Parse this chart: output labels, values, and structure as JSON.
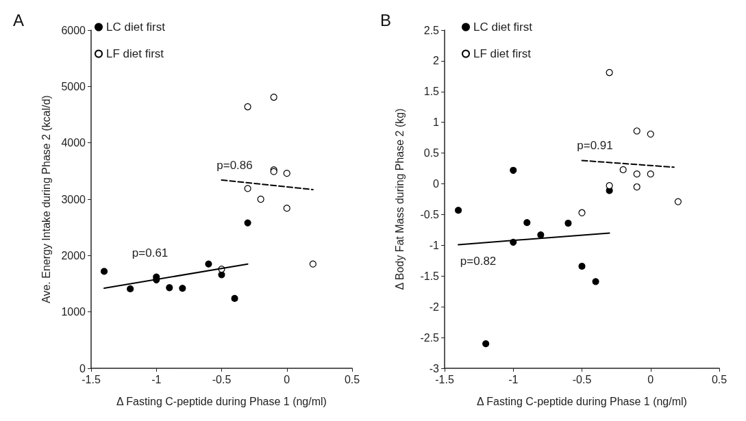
{
  "chart_data": [
    {
      "type": "scatter",
      "title": "A",
      "xlabel": "Δ Fasting C-peptide during Phase 1 (ng/ml)",
      "ylabel": "Ave. Energy Intake during Phase 2 (kcal/d)",
      "xlim": [
        -1.5,
        0.5
      ],
      "xticks": [
        -1.5,
        -1,
        -0.5,
        0,
        0.5
      ],
      "ylim": [
        0,
        6000
      ],
      "yticks": [
        0,
        1000,
        2000,
        3000,
        4000,
        5000,
        6000
      ],
      "grid": false,
      "legend": "top left",
      "marker": "circle",
      "series": [
        {
          "name": "LC diet first",
          "color": "#000000",
          "x": [
            -1.4,
            -1.2,
            -1,
            -1,
            -0.9,
            -0.8,
            -0.6,
            -0.5,
            -0.4,
            -0.3
          ],
          "values": [
            1720,
            1410,
            1620,
            1570,
            1430,
            1420,
            1850,
            1660,
            1240,
            2580
          ]
        },
        {
          "name": "LF diet first",
          "color": "#ffffff",
          "x": [
            -0.3,
            -0.1,
            -0.1,
            -0.1,
            0,
            -0.3,
            -0.2,
            0,
            0.2,
            -0.5
          ],
          "values": [
            4640,
            4810,
            3520,
            3490,
            3460,
            3190,
            3000,
            2840,
            1850,
            1760
          ]
        },
        {
          "type": "line",
          "color": "#000000",
          "line_style": "solid",
          "marker": "none",
          "x": [
            -1.4,
            -0.3
          ],
          "values": [
            1420,
            1850
          ]
        },
        {
          "type": "line",
          "color": "#000000",
          "line_style": "dashed",
          "marker": "none",
          "x": [
            -0.5,
            0.2
          ],
          "values": [
            3340,
            3170
          ]
        }
      ],
      "annotations": [
        "p=0.61",
        "p=0.86"
      ]
    },
    {
      "type": "scatter",
      "title": "B",
      "xlabel": "Δ Fasting C-peptide during Phase 1 (ng/ml)",
      "ylabel": "Δ Body Fat Mass during Phase 2 (kg)",
      "xlim": [
        -1.5,
        0.5
      ],
      "xticks": [
        -1.5,
        -1,
        -0.5,
        0,
        0.5
      ],
      "ylim": [
        -3,
        2.5
      ],
      "yticks": [
        -3,
        -2.5,
        -2,
        -1.5,
        -1,
        -0.5,
        0,
        0.5,
        1,
        1.5,
        2,
        2.5
      ],
      "grid": false,
      "legend": "top left",
      "marker": "circle",
      "series": [
        {
          "name": "LC diet first",
          "color": "#000000",
          "x": [
            -1.4,
            -1.2,
            -1,
            -1,
            -0.9,
            -0.8,
            -0.6,
            -0.5,
            -0.4,
            -0.3
          ],
          "values": [
            -0.43,
            -2.6,
            0.22,
            -0.95,
            -0.63,
            -0.83,
            -0.64,
            -1.34,
            -1.59,
            -0.11
          ]
        },
        {
          "name": "LF diet first",
          "color": "#ffffff",
          "x": [
            -0.3,
            -0.1,
            0,
            -0.2,
            -0.1,
            0,
            -0.3,
            -0.1,
            0.2,
            -0.5
          ],
          "values": [
            1.81,
            0.86,
            0.81,
            0.23,
            0.16,
            0.16,
            -0.03,
            -0.05,
            -0.29,
            -0.47
          ]
        },
        {
          "type": "line",
          "color": "#000000",
          "line_style": "solid",
          "marker": "none",
          "x": [
            -1.4,
            -0.3
          ],
          "values": [
            -0.99,
            -0.8
          ]
        },
        {
          "type": "line",
          "color": "#000000",
          "line_style": "dashed",
          "marker": "none",
          "x": [
            -0.5,
            0.17
          ],
          "values": [
            0.38,
            0.27
          ]
        }
      ],
      "annotations": [
        "p=0.82",
        "p=0.91"
      ]
    }
  ]
}
